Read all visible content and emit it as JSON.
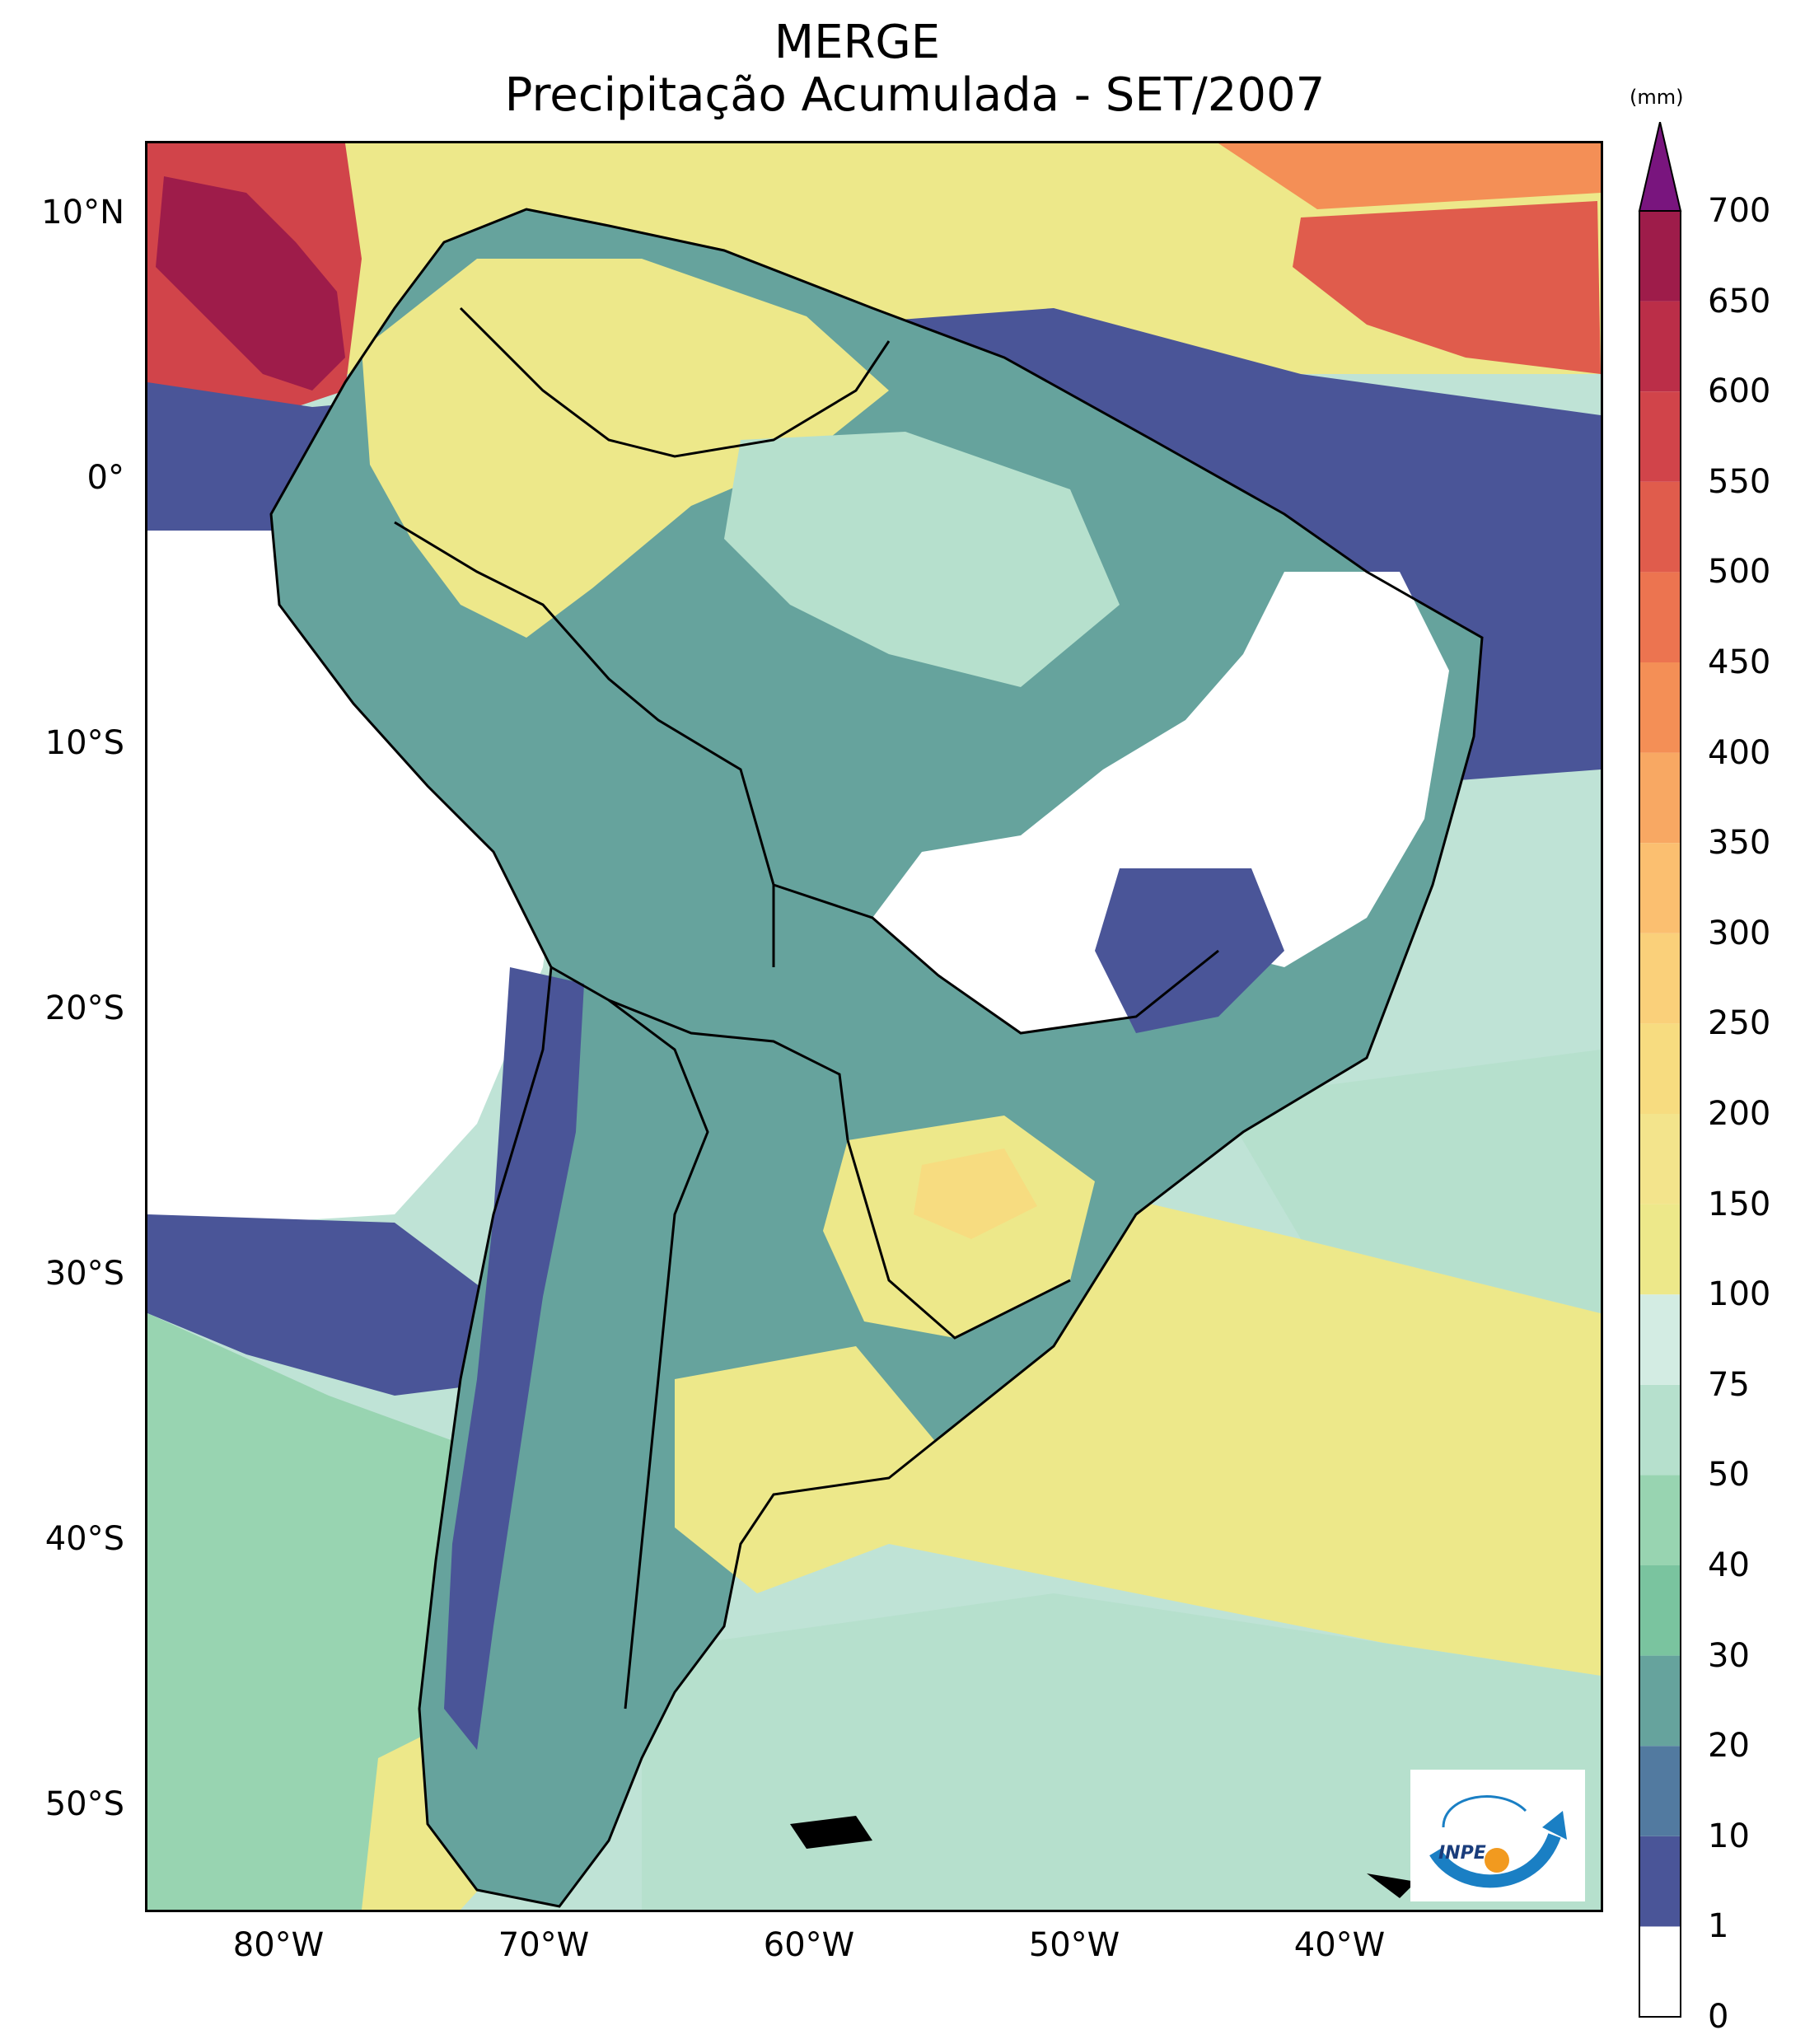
{
  "title": {
    "line1": "MERGE",
    "line2": "Precipitação Acumulada - SET/2007"
  },
  "axes": {
    "latitude_ticks": [
      "10°N",
      "0°",
      "10°S",
      "20°S",
      "30°S",
      "40°S",
      "50°S"
    ],
    "longitude_ticks": [
      "80°W",
      "70°W",
      "60°W",
      "50°W",
      "40°W"
    ],
    "lon_range": [
      -85,
      -30
    ],
    "lat_range": [
      -56,
      13
    ]
  },
  "colorbar": {
    "unit": "(mm)",
    "levels": [
      "0",
      "1",
      "10",
      "20",
      "30",
      "40",
      "50",
      "75",
      "100",
      "150",
      "200",
      "250",
      "300",
      "350",
      "400",
      "450",
      "500",
      "550",
      "600",
      "650",
      "700"
    ],
    "colors": [
      "#ffffff",
      "#4a5598",
      "#527aa0",
      "#66a39d",
      "#7ac49f",
      "#98d4b1",
      "#b6e0cd",
      "#d3ece3",
      "#ede88a",
      "#f3e48c",
      "#f7dc80",
      "#fad07a",
      "#fbbf70",
      "#f8a863",
      "#f48f56",
      "#ec7450",
      "#e05c4c",
      "#d1444a",
      "#bb2e48",
      "#9e1c4a"
    ],
    "extend_color": "#79157e"
  },
  "logo": {
    "text": "INPE"
  }
}
